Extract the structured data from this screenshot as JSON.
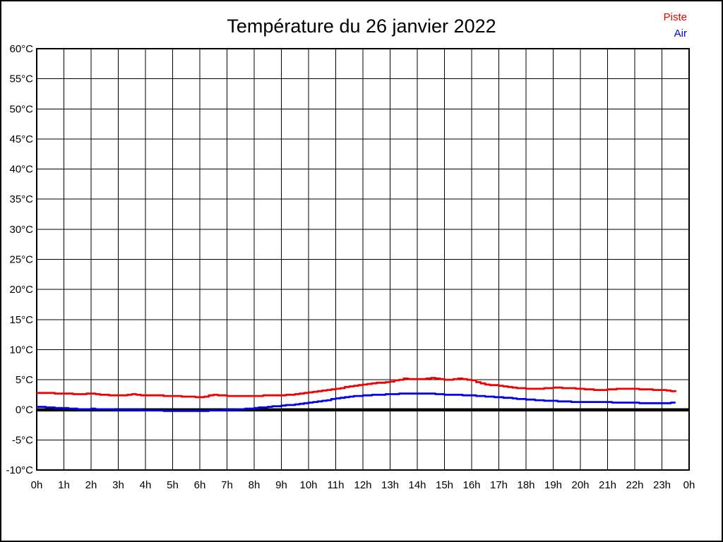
{
  "window": {
    "background": "#ffffff",
    "border_color": "#000000"
  },
  "header": {
    "title": "Température du 26 janvier 2022"
  },
  "legend": {
    "position": "top-right",
    "items": [
      {
        "label": "Piste",
        "color": "#ee0000"
      },
      {
        "label": "Air",
        "color": "#0000ee"
      }
    ]
  },
  "chart_data": {
    "type": "line",
    "title": "Température du 26 janvier 2022",
    "xlabel": "",
    "ylabel": "",
    "grid": true,
    "legend_position": "top-right",
    "x_axis": {
      "unit": "hours",
      "min": 0,
      "max": 24,
      "tick_labels": [
        "0h",
        "1h",
        "2h",
        "3h",
        "4h",
        "5h",
        "6h",
        "7h",
        "8h",
        "9h",
        "10h",
        "11h",
        "12h",
        "13h",
        "14h",
        "15h",
        "16h",
        "17h",
        "18h",
        "19h",
        "20h",
        "21h",
        "22h",
        "23h",
        "0h"
      ]
    },
    "y_axis": {
      "unit": "°C",
      "min": -10,
      "max": 60,
      "tick_step": 5,
      "tick_labels": [
        "60°C",
        "55°C",
        "50°C",
        "45°C",
        "40°C",
        "35°C",
        "30°C",
        "25°C",
        "20°C",
        "15°C",
        "10°C",
        "5°C",
        "0°C",
        "-5°C",
        "-10°C"
      ]
    },
    "zero_line": {
      "value": 0,
      "color": "#000000"
    },
    "series": [
      {
        "name": "Piste",
        "color": "#ee0000",
        "x": [
          0,
          0.5,
          1,
          1.5,
          2,
          2.5,
          3,
          3.5,
          4,
          4.5,
          5,
          5.5,
          6,
          6.5,
          7,
          7.5,
          8,
          8.5,
          9,
          9.5,
          10,
          10.5,
          11,
          11.5,
          12,
          12.5,
          13,
          13.5,
          14,
          14.5,
          15,
          15.5,
          16,
          16.5,
          17,
          17.5,
          18,
          18.5,
          19,
          19.5,
          20,
          20.5,
          21,
          21.5,
          22,
          22.5,
          23,
          23.5
        ],
        "values": [
          2.8,
          2.75,
          2.7,
          2.6,
          2.7,
          2.45,
          2.35,
          2.55,
          2.4,
          2.35,
          2.3,
          2.2,
          2.1,
          2.5,
          2.3,
          2.25,
          2.3,
          2.4,
          2.4,
          2.6,
          2.9,
          3.2,
          3.5,
          3.9,
          4.2,
          4.45,
          4.7,
          5.15,
          5.05,
          5.3,
          4.95,
          5.15,
          4.85,
          4.2,
          4.0,
          3.65,
          3.5,
          3.5,
          3.7,
          3.6,
          3.45,
          3.3,
          3.35,
          3.5,
          3.45,
          3.35,
          3.25,
          2.95
        ]
      },
      {
        "name": "Air",
        "color": "#0000ee",
        "x": [
          0,
          0.5,
          1,
          1.5,
          2,
          2.5,
          3,
          3.5,
          4,
          4.5,
          5,
          5.5,
          6,
          6.5,
          7,
          7.5,
          8,
          8.5,
          9,
          9.5,
          10,
          10.5,
          11,
          11.5,
          12,
          12.5,
          13,
          13.5,
          14,
          14.5,
          15,
          15.5,
          16,
          16.5,
          17,
          17.5,
          18,
          18.5,
          19,
          19.5,
          20,
          20.5,
          21,
          21.5,
          22,
          22.5,
          23,
          23.5
        ],
        "values": [
          0.5,
          0.35,
          0.25,
          0.1,
          0.15,
          0.1,
          0.0,
          0.0,
          -0.1,
          -0.15,
          -0.2,
          -0.25,
          -0.2,
          -0.1,
          0.0,
          0.1,
          0.3,
          0.5,
          0.7,
          0.9,
          1.2,
          1.5,
          1.9,
          2.2,
          2.4,
          2.5,
          2.6,
          2.7,
          2.7,
          2.65,
          2.5,
          2.45,
          2.35,
          2.2,
          2.1,
          1.9,
          1.7,
          1.55,
          1.45,
          1.35,
          1.3,
          1.3,
          1.25,
          1.2,
          1.15,
          1.1,
          1.1,
          1.2
        ]
      }
    ]
  }
}
